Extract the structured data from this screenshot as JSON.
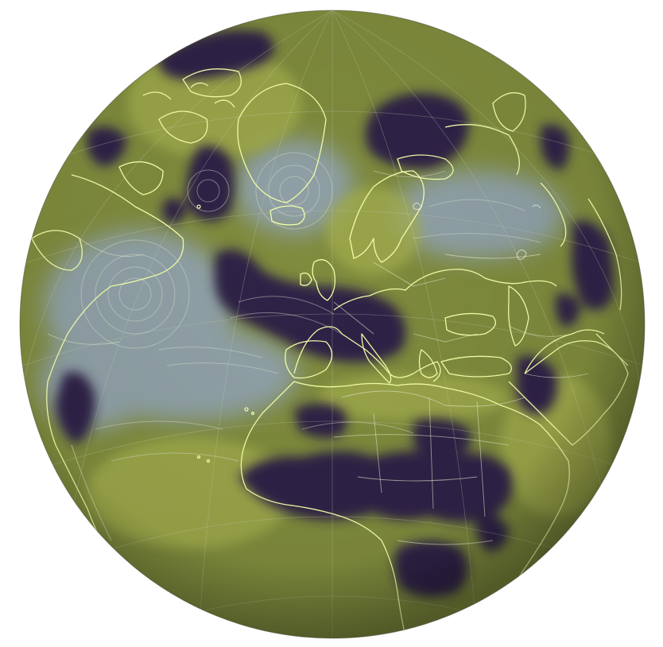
{
  "map": {
    "projection": "orthographic",
    "overlay_palette": {
      "high": "#8fa1a6",
      "mid": "#7d8a3a",
      "low": "#2e2145",
      "coast": "#f4ffa8",
      "border": "#e8ecd0",
      "graticule": "#c8ccb0",
      "lakes": "#ffffff"
    },
    "layers": [
      "overlay-field",
      "wind-streamlines",
      "graticule",
      "coastlines",
      "country-borders"
    ]
  }
}
